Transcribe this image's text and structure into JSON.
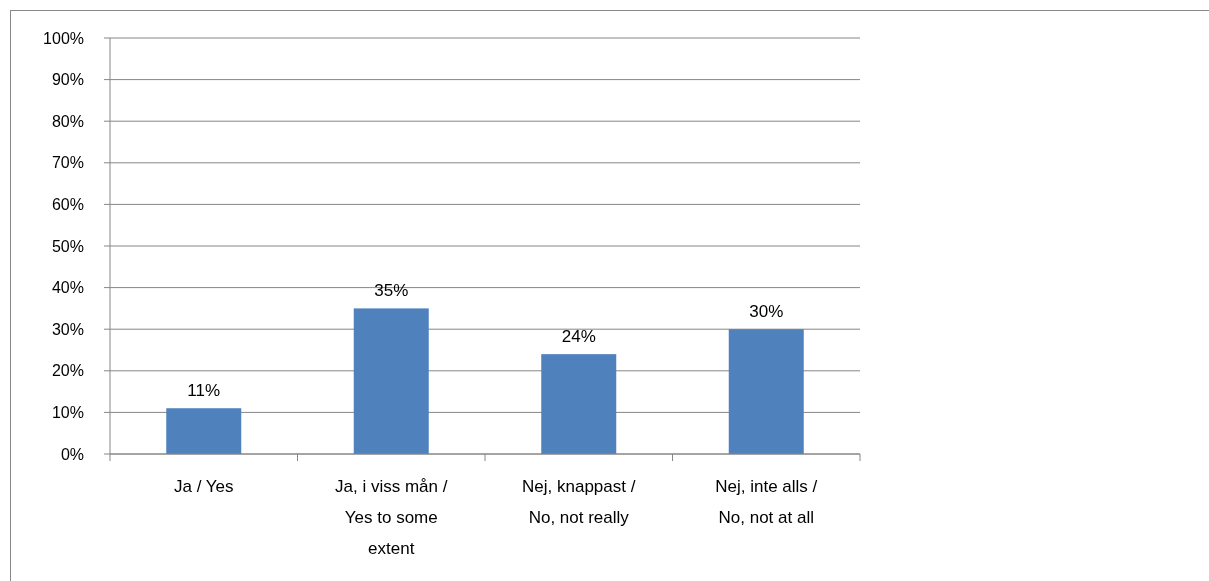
{
  "chart_data": {
    "type": "bar",
    "categories": [
      "Ja / Yes",
      "Ja, i viss mån / Yes to some extent",
      "Nej, knappast / No, not really",
      "Nej, inte alls / No, not at all"
    ],
    "values": [
      11,
      35,
      24,
      30
    ],
    "value_labels": [
      "11%",
      "35%",
      "24%",
      "30%"
    ],
    "color": "#4f81bd",
    "ylim": [
      0,
      100
    ],
    "yticks": [
      {
        "value": 0,
        "label": "0%"
      },
      {
        "value": 10,
        "label": "10%"
      },
      {
        "value": 20,
        "label": "20%"
      },
      {
        "value": 30,
        "label": "30%"
      },
      {
        "value": 40,
        "label": "40%"
      },
      {
        "value": 50,
        "label": "50%"
      },
      {
        "value": 60,
        "label": "60%"
      },
      {
        "value": 70,
        "label": "70%"
      },
      {
        "value": 80,
        "label": "80%"
      },
      {
        "value": 90,
        "label": "90%"
      },
      {
        "value": 100,
        "label": "100%"
      }
    ],
    "grid": "y"
  }
}
